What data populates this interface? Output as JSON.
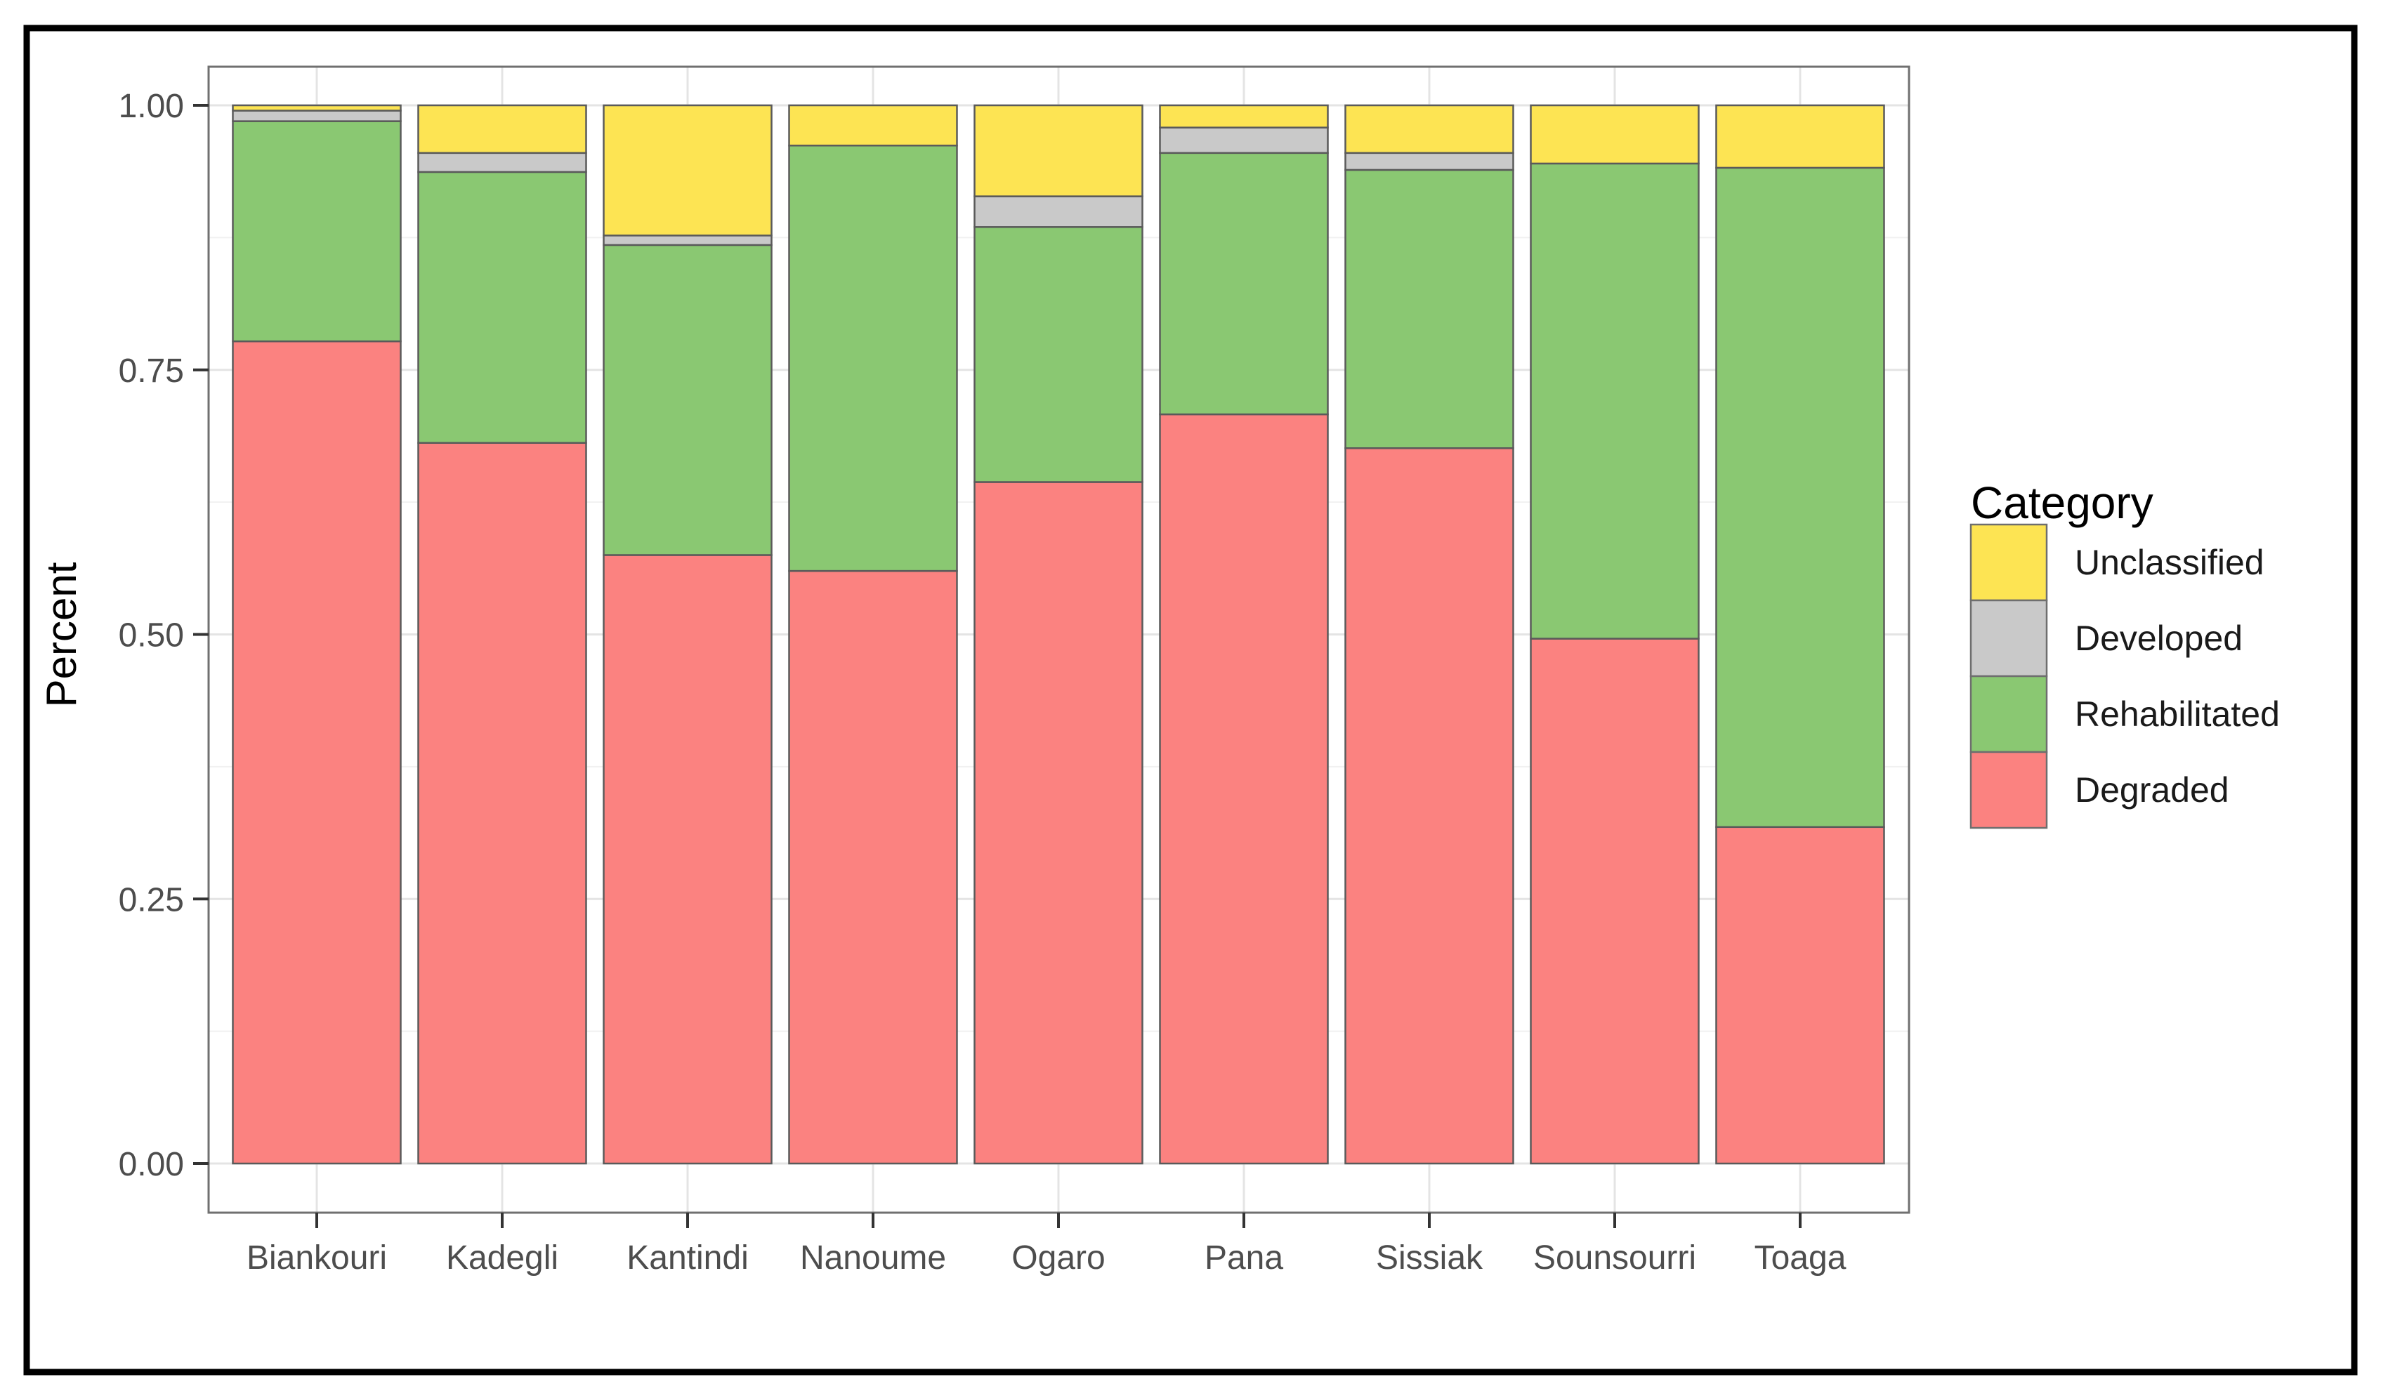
{
  "figure": {
    "border_color": "#000000",
    "background": "#ffffff"
  },
  "chart_data": {
    "type": "bar",
    "stacked": true,
    "title": "",
    "xlabel": "",
    "ylabel": "Percent",
    "ylim": [
      0,
      1
    ],
    "grid": {
      "major": true,
      "minor": true
    },
    "categories": [
      "Biankouri",
      "Kadegli",
      "Kantindi",
      "Nanoume",
      "Ogaro",
      "Pana",
      "Sissiak",
      "Sounsourri",
      "Toaga"
    ],
    "series": [
      {
        "name": "Degraded",
        "color": "#FB8280",
        "values": [
          0.777,
          0.681,
          0.575,
          0.56,
          0.644,
          0.708,
          0.676,
          0.496,
          0.318
        ]
      },
      {
        "name": "Rehabilitated",
        "color": "#8AC872",
        "values": [
          0.208,
          0.256,
          0.293,
          0.402,
          0.241,
          0.247,
          0.263,
          0.449,
          0.623
        ]
      },
      {
        "name": "Developed",
        "color": "#C9C9C9",
        "values": [
          0.01,
          0.018,
          0.009,
          0.0,
          0.029,
          0.024,
          0.016,
          0.0,
          0.0
        ]
      },
      {
        "name": "Unclassified",
        "color": "#FDE453",
        "values": [
          0.005,
          0.045,
          0.123,
          0.038,
          0.086,
          0.021,
          0.045,
          0.055,
          0.059
        ]
      }
    ],
    "stack_order_bottom_to_top": [
      "Degraded",
      "Rehabilitated",
      "Developed",
      "Unclassified"
    ],
    "y_ticks": {
      "values": [
        0,
        0.25,
        0.5,
        0.75,
        1.0
      ],
      "labels": [
        "0.00",
        "0.25",
        "0.50",
        "0.75",
        "1.00"
      ]
    },
    "y_minor_ticks": [
      0.125,
      0.375,
      0.625,
      0.875
    ],
    "legend": {
      "title": "Category",
      "position": "right",
      "entries_top_to_bottom": [
        "Unclassified",
        "Developed",
        "Rehabilitated",
        "Degraded"
      ]
    }
  },
  "colors": {
    "segment_stroke": "#5A5A5A",
    "panel_border": "#707070",
    "panel_background": "#FFFFFF",
    "grid_major": "#E4E4E4",
    "grid_minor": "#F1F1F1",
    "tick_mark": "#333333",
    "axis_text": "#4D4D4D",
    "title_text": "#000000",
    "legend_swatch_stroke": "#6E6E6E"
  }
}
